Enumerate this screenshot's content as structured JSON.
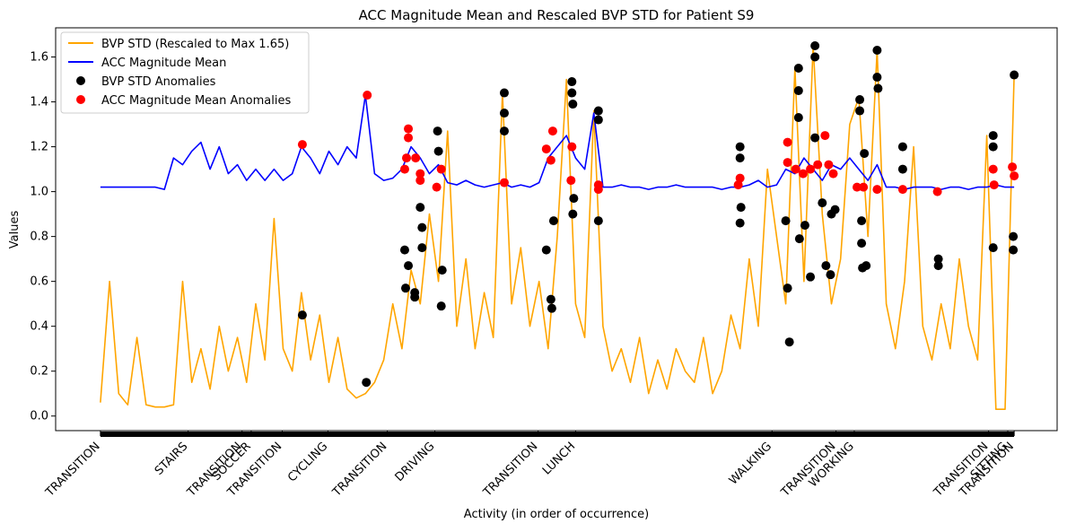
{
  "chart_data": {
    "type": "line",
    "title": "ACC Magnitude Mean and Rescaled BVP STD for Patient S9",
    "x_label": "Activity (in order of occurrence)",
    "y_label": "Values",
    "xlim": [
      -49,
      1047
    ],
    "ylim": [
      -0.065,
      1.73
    ],
    "xticks": [
      {
        "value": 0,
        "label": "TRANSITION"
      },
      {
        "value": 96,
        "label": "STAIRS"
      },
      {
        "value": 155,
        "label": "TRANSITION"
      },
      {
        "value": 165,
        "label": "SOCCER"
      },
      {
        "value": 199,
        "label": "TRANSITION"
      },
      {
        "value": 249,
        "label": "CYCLING"
      },
      {
        "value": 314,
        "label": "TRANSITION"
      },
      {
        "value": 366,
        "label": "DRIVING"
      },
      {
        "value": 479,
        "label": "TRANSITION"
      },
      {
        "value": 520,
        "label": "LUNCH"
      },
      {
        "value": 735,
        "label": "WALKING"
      },
      {
        "value": 805,
        "label": "TRANSITION"
      },
      {
        "value": 825,
        "label": "WORKING"
      },
      {
        "value": 972,
        "label": "TRANSITION"
      },
      {
        "value": 993,
        "label": "SITTING"
      },
      {
        "value": 1000,
        "label": "TRANSITION"
      }
    ],
    "yticks": [
      {
        "value": 0,
        "label": "0.0"
      },
      0.2,
      0.4,
      0.6,
      0.8,
      {
        "value": 1,
        "label": "1.0"
      },
      1.2,
      1.4,
      1.6
    ],
    "legend": "upper left",
    "series": [
      {
        "name": "BVP STD (Rescaled to Max 1.65)",
        "type": "line",
        "color": "#ffa500",
        "x": [
          0,
          10,
          20,
          30,
          40,
          50,
          60,
          70,
          80,
          90,
          100,
          110,
          120,
          130,
          140,
          150,
          160,
          170,
          180,
          190,
          200,
          210,
          220,
          230,
          240,
          250,
          260,
          270,
          280,
          290,
          300,
          310,
          320,
          330,
          340,
          350,
          360,
          370,
          380,
          390,
          400,
          410,
          420,
          430,
          440,
          450,
          460,
          470,
          480,
          490,
          500,
          510,
          520,
          530,
          540,
          550,
          560,
          570,
          580,
          590,
          600,
          610,
          620,
          630,
          640,
          650,
          660,
          670,
          680,
          690,
          700,
          710,
          720,
          730,
          740,
          750,
          760,
          770,
          780,
          790,
          800,
          810,
          820,
          830,
          840,
          850,
          860,
          870,
          880,
          890,
          900,
          910,
          920,
          930,
          940,
          950,
          960,
          970,
          980,
          990,
          1000
        ],
        "values": [
          0.06,
          0.6,
          0.1,
          0.05,
          0.35,
          0.05,
          0.04,
          0.04,
          0.05,
          0.6,
          0.15,
          0.3,
          0.12,
          0.4,
          0.2,
          0.35,
          0.15,
          0.5,
          0.25,
          0.88,
          0.3,
          0.2,
          0.55,
          0.25,
          0.45,
          0.15,
          0.35,
          0.12,
          0.08,
          0.1,
          0.15,
          0.25,
          0.5,
          0.3,
          0.65,
          0.5,
          0.9,
          0.6,
          1.27,
          0.4,
          0.7,
          0.3,
          0.55,
          0.35,
          1.44,
          0.5,
          0.75,
          0.4,
          0.6,
          0.3,
          0.8,
          1.5,
          0.5,
          0.35,
          1.36,
          0.4,
          0.2,
          0.3,
          0.15,
          0.35,
          0.1,
          0.25,
          0.12,
          0.3,
          0.2,
          0.15,
          0.35,
          0.1,
          0.2,
          0.45,
          0.3,
          0.7,
          0.4,
          1.1,
          0.8,
          0.5,
          1.55,
          0.6,
          1.65,
          0.9,
          0.5,
          0.7,
          1.3,
          1.42,
          0.8,
          1.63,
          0.5,
          0.3,
          0.6,
          1.2,
          0.4,
          0.25,
          0.5,
          0.3,
          0.7,
          0.4,
          0.25,
          1.25,
          0.03,
          0.03,
          1.52
        ]
      },
      {
        "name": "ACC Magnitude Mean",
        "type": "line",
        "color": "#0000ff",
        "x": [
          0,
          10,
          20,
          30,
          40,
          50,
          60,
          70,
          80,
          90,
          100,
          110,
          120,
          130,
          140,
          150,
          160,
          170,
          180,
          190,
          200,
          210,
          220,
          230,
          240,
          250,
          260,
          270,
          280,
          290,
          300,
          310,
          320,
          330,
          340,
          350,
          360,
          370,
          380,
          390,
          400,
          410,
          420,
          430,
          440,
          450,
          460,
          470,
          480,
          490,
          500,
          510,
          520,
          530,
          540,
          550,
          560,
          570,
          580,
          590,
          600,
          610,
          620,
          630,
          640,
          650,
          660,
          670,
          680,
          690,
          700,
          710,
          720,
          730,
          740,
          750,
          760,
          770,
          780,
          790,
          800,
          810,
          820,
          830,
          840,
          850,
          860,
          870,
          880,
          890,
          900,
          910,
          920,
          930,
          940,
          950,
          960,
          970,
          980,
          990,
          1000
        ],
        "values": [
          1.02,
          1.02,
          1.02,
          1.02,
          1.02,
          1.02,
          1.02,
          1.01,
          1.15,
          1.12,
          1.18,
          1.22,
          1.1,
          1.2,
          1.08,
          1.12,
          1.05,
          1.1,
          1.05,
          1.1,
          1.05,
          1.08,
          1.2,
          1.15,
          1.08,
          1.18,
          1.12,
          1.2,
          1.15,
          1.43,
          1.08,
          1.05,
          1.06,
          1.1,
          1.2,
          1.15,
          1.08,
          1.12,
          1.04,
          1.03,
          1.05,
          1.03,
          1.02,
          1.03,
          1.04,
          1.02,
          1.03,
          1.02,
          1.04,
          1.15,
          1.2,
          1.25,
          1.15,
          1.1,
          1.35,
          1.02,
          1.02,
          1.03,
          1.02,
          1.02,
          1.01,
          1.02,
          1.02,
          1.03,
          1.02,
          1.02,
          1.02,
          1.02,
          1.01,
          1.02,
          1.02,
          1.03,
          1.05,
          1.02,
          1.03,
          1.1,
          1.08,
          1.15,
          1.1,
          1.05,
          1.12,
          1.1,
          1.15,
          1.1,
          1.05,
          1.12,
          1.02,
          1.02,
          1.01,
          1.02,
          1.02,
          1.02,
          1.01,
          1.02,
          1.02,
          1.01,
          1.02,
          1.02,
          1.03,
          1.02,
          1.02
        ]
      },
      {
        "name": "BVP STD Anomalies",
        "type": "scatter",
        "color": "#000000",
        "x": [
          221,
          291,
          333,
          334,
          337,
          344,
          344,
          350,
          352,
          352,
          369,
          370,
          373,
          374,
          442,
          442,
          442,
          488,
          493,
          494,
          496,
          516,
          516,
          517,
          517,
          518,
          545,
          545,
          545,
          700,
          700,
          700,
          701,
          750,
          752,
          754,
          764,
          764,
          764,
          765,
          771,
          777,
          782,
          782,
          782,
          790,
          794,
          799,
          800,
          804,
          831,
          831,
          833,
          833,
          834,
          836,
          838,
          850,
          850,
          851,
          878,
          878,
          917,
          917,
          977,
          977,
          977,
          999,
          999,
          1000
        ],
        "values": [
          0.45,
          0.15,
          0.74,
          0.57,
          0.67,
          0.55,
          0.53,
          0.93,
          0.84,
          0.75,
          1.27,
          1.18,
          0.49,
          0.65,
          1.44,
          1.35,
          1.27,
          0.74,
          0.52,
          0.48,
          0.87,
          1.49,
          1.44,
          1.39,
          0.9,
          0.97,
          1.36,
          1.32,
          0.87,
          1.2,
          1.15,
          0.86,
          0.93,
          0.87,
          0.57,
          0.33,
          1.55,
          1.45,
          1.33,
          0.79,
          0.85,
          0.62,
          1.65,
          1.6,
          1.24,
          0.95,
          0.67,
          0.63,
          0.9,
          0.92,
          1.41,
          1.36,
          0.87,
          0.77,
          0.66,
          1.17,
          0.67,
          1.63,
          1.51,
          1.46,
          1.2,
          1.1,
          0.7,
          0.67,
          1.25,
          1.2,
          0.75,
          0.8,
          0.74,
          1.52
        ]
      },
      {
        "name": "ACC Magnitude Mean Anomalies",
        "type": "scatter",
        "color": "#ff0000",
        "x": [
          221,
          292,
          333,
          335,
          337,
          337,
          345,
          350,
          350,
          368,
          373,
          442,
          488,
          493,
          495,
          516,
          515,
          545,
          545,
          698,
          700,
          752,
          752,
          761,
          769,
          777,
          785,
          793,
          797,
          802,
          828,
          835,
          850,
          878,
          916,
          977,
          978,
          998,
          1000
        ],
        "values": [
          1.21,
          1.43,
          1.1,
          1.15,
          1.28,
          1.24,
          1.15,
          1.05,
          1.08,
          1.02,
          1.1,
          1.04,
          1.19,
          1.14,
          1.27,
          1.2,
          1.05,
          1.03,
          1.01,
          1.03,
          1.06,
          1.22,
          1.13,
          1.1,
          1.08,
          1.1,
          1.12,
          1.25,
          1.12,
          1.08,
          1.02,
          1.02,
          1.01,
          1.01,
          1.0,
          1.1,
          1.03,
          1.11,
          1.07
        ]
      }
    ]
  }
}
